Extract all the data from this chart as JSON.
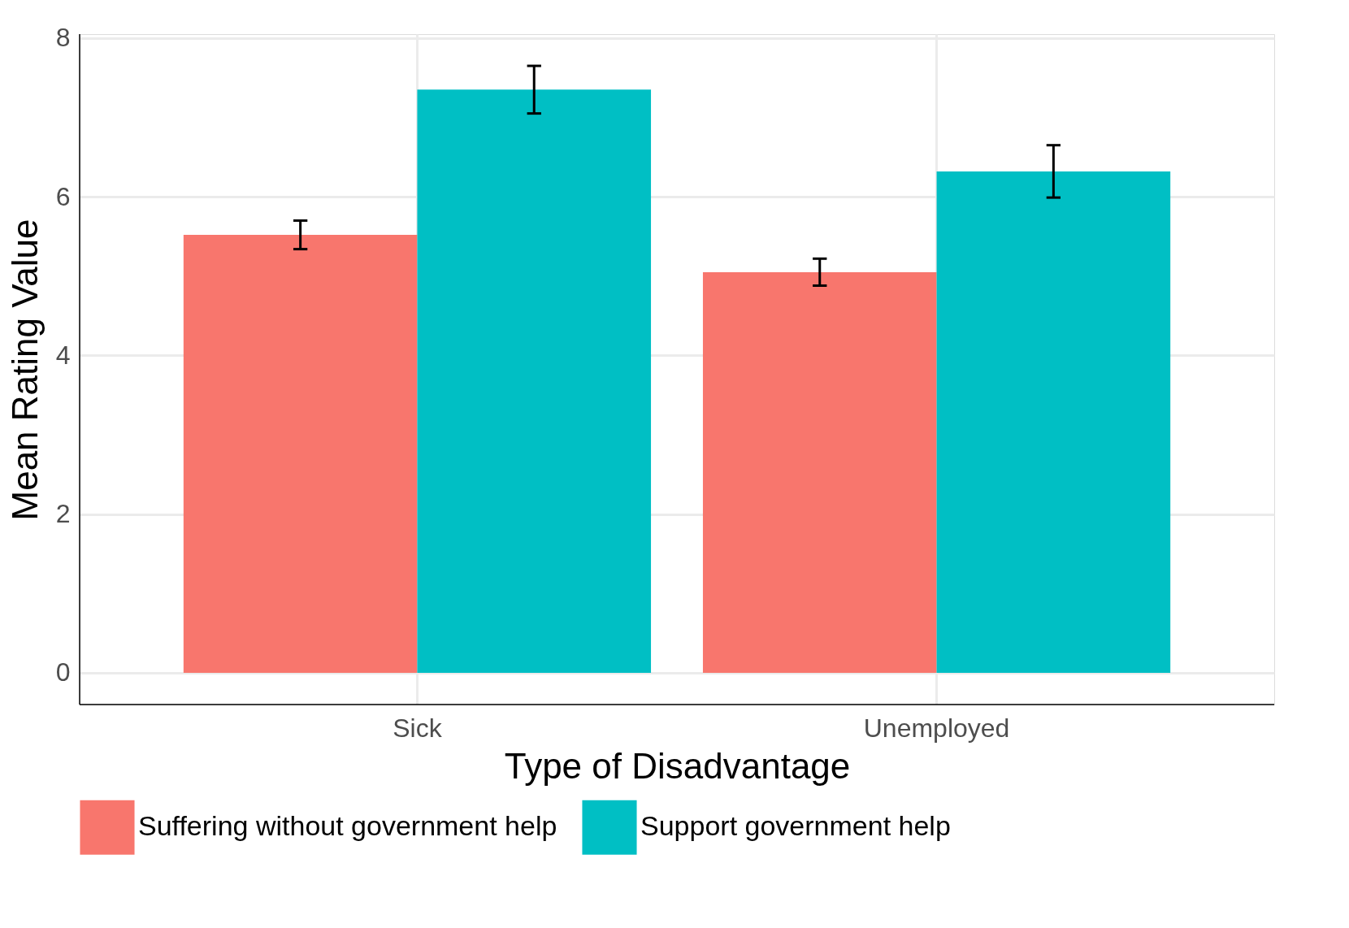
{
  "chart_data": {
    "type": "bar",
    "xlabel": "Type of Disadvantage",
    "ylabel": "Mean Rating Value",
    "categories": [
      "Sick",
      "Unemployed"
    ],
    "series": [
      {
        "name": "Suffering without government help",
        "color": "#f8766d",
        "values": [
          5.52,
          5.05
        ],
        "errors": [
          0.18,
          0.17
        ]
      },
      {
        "name": "Support government help",
        "color": "#00bfc4",
        "values": [
          7.35,
          6.32
        ],
        "errors": [
          0.3,
          0.33
        ]
      }
    ],
    "ylim": [
      -0.4,
      8.05
    ],
    "yticks": [
      {
        "value": 0,
        "label": "0"
      },
      {
        "value": 2,
        "label": "2"
      },
      {
        "value": 4,
        "label": "4"
      },
      {
        "value": 6,
        "label": "6"
      },
      {
        "value": 8,
        "label": "8"
      }
    ],
    "grid": true,
    "legend": "bottom"
  }
}
